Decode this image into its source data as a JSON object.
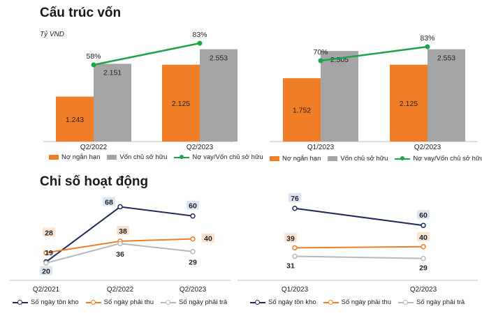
{
  "titles": {
    "capital_structure": "Cấu trúc vốn",
    "activity_ratios": "Chỉ số hoạt động",
    "unit": "Tỷ VND"
  },
  "colors": {
    "orange": "#F07E26",
    "gray": "#A5A5A5",
    "green": "#1FA34A",
    "navy": "#1F2A5A",
    "light_gray": "#B8B8B8",
    "label_orange_bg": "#FBE3D2",
    "label_blue_bg": "#DCE6F2"
  },
  "chart_data": [
    {
      "id": "capital_left",
      "type": "bar",
      "categories": [
        "Q2/2022",
        "Q2/2023"
      ],
      "series": [
        {
          "name": "Nợ ngắn hạn",
          "values": [
            1243,
            2125
          ],
          "labels": [
            "1.243",
            "2.125"
          ]
        },
        {
          "name": "Vốn chủ sở hữu",
          "values": [
            2151,
            2553
          ],
          "labels": [
            "2.151",
            "2.553"
          ]
        }
      ],
      "line_series": {
        "name": "Nợ vay/Vốn chủ sở hữu",
        "values": [
          58,
          83
        ],
        "labels": [
          "58%",
          "83%"
        ]
      },
      "ylim": [
        0,
        2700
      ],
      "legend": [
        "Nợ ngắn hạn",
        "Vốn chủ sở hữu",
        "Nợ vay/Vốn chủ sở hữu"
      ]
    },
    {
      "id": "capital_right",
      "type": "bar",
      "categories": [
        "Q1/2023",
        "Q2/2023"
      ],
      "series": [
        {
          "name": "Nợ ngắn hạn",
          "values": [
            1752,
            2125
          ],
          "labels": [
            "1.752",
            "2.125"
          ]
        },
        {
          "name": "Vốn chủ sở hữu",
          "values": [
            2505,
            2553
          ],
          "labels": [
            "2.505",
            "2.553"
          ]
        }
      ],
      "line_series": {
        "name": "Nợ vay/Vốn chủ sở hữu",
        "values": [
          70,
          83
        ],
        "labels": [
          "70%",
          "83%"
        ]
      },
      "ylim": [
        0,
        2700
      ],
      "legend": [
        "Nợ ngắn hạn",
        "Vốn chủ sở hữu",
        "Nợ vay/Vốn chủ sở hữu"
      ]
    },
    {
      "id": "activity_left",
      "type": "line",
      "categories": [
        "Q2/2021",
        "Q2/2022",
        "Q2/2023"
      ],
      "series": [
        {
          "name": "Số ngày tồn kho",
          "values": [
            20,
            68,
            60
          ],
          "labels": [
            "20",
            "68",
            "60"
          ]
        },
        {
          "name": "Số ngày phải thu",
          "values": [
            28,
            38,
            40
          ],
          "labels": [
            "28",
            "38",
            "40"
          ]
        },
        {
          "name": "Số ngày phải trả",
          "values": [
            19,
            36,
            29
          ],
          "labels": [
            "19",
            "36",
            "29"
          ]
        }
      ],
      "ylim": [
        10,
        75
      ],
      "legend": [
        "Số ngày tồn kho",
        "Số ngày phải thu",
        "Số ngày phải trả"
      ]
    },
    {
      "id": "activity_right",
      "type": "line",
      "categories": [
        "Q1/2023",
        "Q2/2023"
      ],
      "series": [
        {
          "name": "Số ngày tồn kho",
          "values": [
            76,
            60
          ],
          "labels": [
            "76",
            "60"
          ]
        },
        {
          "name": "Số ngày phải thu",
          "values": [
            39,
            40
          ],
          "labels": [
            "39",
            "40"
          ]
        },
        {
          "name": "Số ngày phải trả",
          "values": [
            31,
            29
          ],
          "labels": [
            "31",
            "29"
          ]
        }
      ],
      "ylim": [
        15,
        85
      ],
      "legend": [
        "Số ngày tồn kho",
        "Số ngày phải thu",
        "Số ngày phải trả"
      ]
    }
  ]
}
